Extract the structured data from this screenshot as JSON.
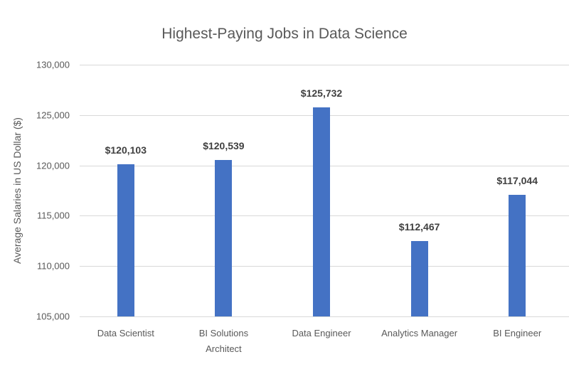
{
  "chart_data": {
    "type": "bar",
    "title": "Highest-Paying Jobs in Data Science",
    "xlabel": "",
    "ylabel": "Average Salaries in US Dollar ($)",
    "categories": [
      "Data Scientist",
      "BI Solutions Architect",
      "Data Engineer",
      "Analytics Manager",
      "BI Engineer"
    ],
    "category_display": [
      [
        "Data Scientist"
      ],
      [
        "BI Solutions",
        "Architect"
      ],
      [
        "Data Engineer"
      ],
      [
        "Analytics Manager"
      ],
      [
        "BI Engineer"
      ]
    ],
    "values": [
      120103,
      120539,
      125732,
      112467,
      117044
    ],
    "data_labels": [
      "$120,103",
      "$120,539",
      "$125,732",
      "$112,467",
      "$117,044"
    ],
    "ylim": [
      105000,
      130000
    ],
    "yticks": [
      105000,
      110000,
      115000,
      120000,
      125000,
      130000
    ],
    "ytick_labels": [
      "105,000",
      "110,000",
      "115,000",
      "120,000",
      "125,000",
      "130,000"
    ],
    "grid": true,
    "legend": null,
    "bar_color": "#4472c4"
  }
}
